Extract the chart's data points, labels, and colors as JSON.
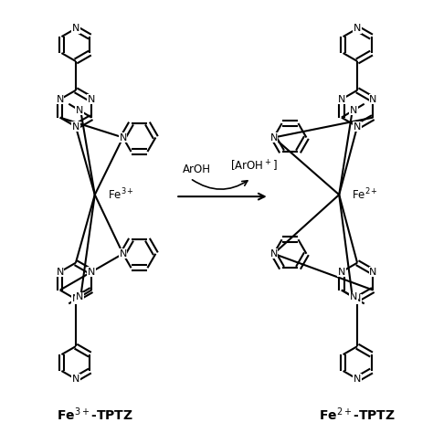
{
  "background": "#ffffff",
  "arrow_label_above": "ArOH",
  "arrow_label_below": "[ArOH⁺]",
  "label_left": "Fe$^{3+}$-TPTZ",
  "label_right": "Fe$^{2+}$-TPTZ",
  "fe_left_label": "Fe$^{3+}$",
  "fe_right_label": "Fe$^{2+}$",
  "lw": 1.5
}
